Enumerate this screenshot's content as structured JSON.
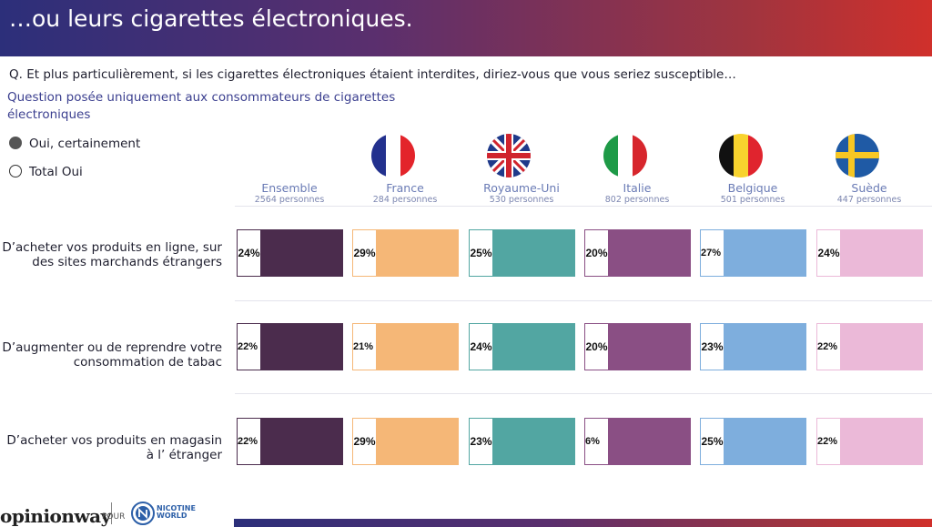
{
  "header": {
    "title": "…ou leurs cigarettes électroniques."
  },
  "question": "Q. Et plus particulièrement, si les cigarettes électroniques étaient interdites, diriez-vous que vous seriez susceptible…",
  "subnote": "Question posée uniquement aux consommateurs de cigarettes électroniques",
  "legend": [
    {
      "label": "Oui, certainement",
      "style": "filled"
    },
    {
      "label": "Total Oui",
      "style": "outline"
    }
  ],
  "columns": [
    {
      "name": "Ensemble",
      "n": "2564 personnes",
      "color": "#4b2c4d",
      "flag": ""
    },
    {
      "name": "France",
      "n": "284 personnes",
      "color": "#f5b777",
      "flag": "france-flag-icon"
    },
    {
      "name": "Royaume-Uni",
      "n": "530 personnes",
      "color": "#52a6a2",
      "flag": "uk-flag-icon"
    },
    {
      "name": "Italie",
      "n": "802 personnes",
      "color": "#8a4f84",
      "flag": "italy-flag-icon"
    },
    {
      "name": "Belgique",
      "n": "501 personnes",
      "color": "#7eaedd",
      "flag": "belgium-flag-icon"
    },
    {
      "name": "Suède",
      "n": "447 personnes",
      "color": "#ebb9d8",
      "flag": "sweden-flag-icon"
    }
  ],
  "chart_data": {
    "type": "bar",
    "categories": [
      "D’acheter vos produits en ligne, sur des sites marchands étrangers",
      "D’augmenter ou de reprendre votre consommation de tabac",
      "D’acheter vos produits en magasin à l’ étranger"
    ],
    "series": [
      {
        "name": "Ensemble",
        "values": [
          24,
          22,
          22
        ]
      },
      {
        "name": "France",
        "values": [
          29,
          21,
          29
        ]
      },
      {
        "name": "Royaume-Uni",
        "values": [
          25,
          24,
          23
        ]
      },
      {
        "name": "Italie",
        "values": [
          20,
          20,
          6
        ]
      },
      {
        "name": "Belgique",
        "values": [
          27,
          23,
          25
        ]
      },
      {
        "name": "Suède",
        "values": [
          24,
          22,
          22
        ]
      }
    ],
    "unit": "%"
  },
  "footer": {
    "brand": "opinionway",
    "pour": "POUR",
    "partner_line1": "NICOTINE",
    "partner_line2": "WORLD"
  }
}
